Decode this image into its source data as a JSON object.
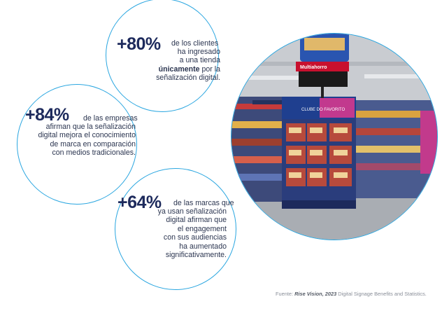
{
  "stats": [
    {
      "percent": "+80%",
      "line1": "de los clientes",
      "line2": "ha ingresado",
      "line3": "a una tienda",
      "line4_bold": "únicamente",
      "line4_rest": " por la",
      "line5": "señalización digital."
    },
    {
      "percent": "+84%",
      "line1": "de las empresas",
      "line2": "afirman que la señalización",
      "line3": "digital mejora el conocimiento",
      "line4": "de marca en comparación",
      "line5": "con medios tradicionales."
    },
    {
      "percent": "+64%",
      "line1": "de las marcas que",
      "line2": "ya usan señalización",
      "line3": "digital afirman que",
      "line4": "el engagement",
      "line5": "con sus audiencias",
      "line6": "ha aumentado",
      "line7": "significativamente."
    }
  ],
  "photo": {
    "sign_brand": "Multiahorro",
    "display_text": "CLUBE DO FAVORITO"
  },
  "footer": {
    "prefix": "Fuente: ",
    "source_bold": "Rise Vision, 2023",
    "rest": " Digital Signage Benefits and Statistics."
  },
  "colors": {
    "accent": "#2aa6e0",
    "navy": "#1d2a5c"
  }
}
